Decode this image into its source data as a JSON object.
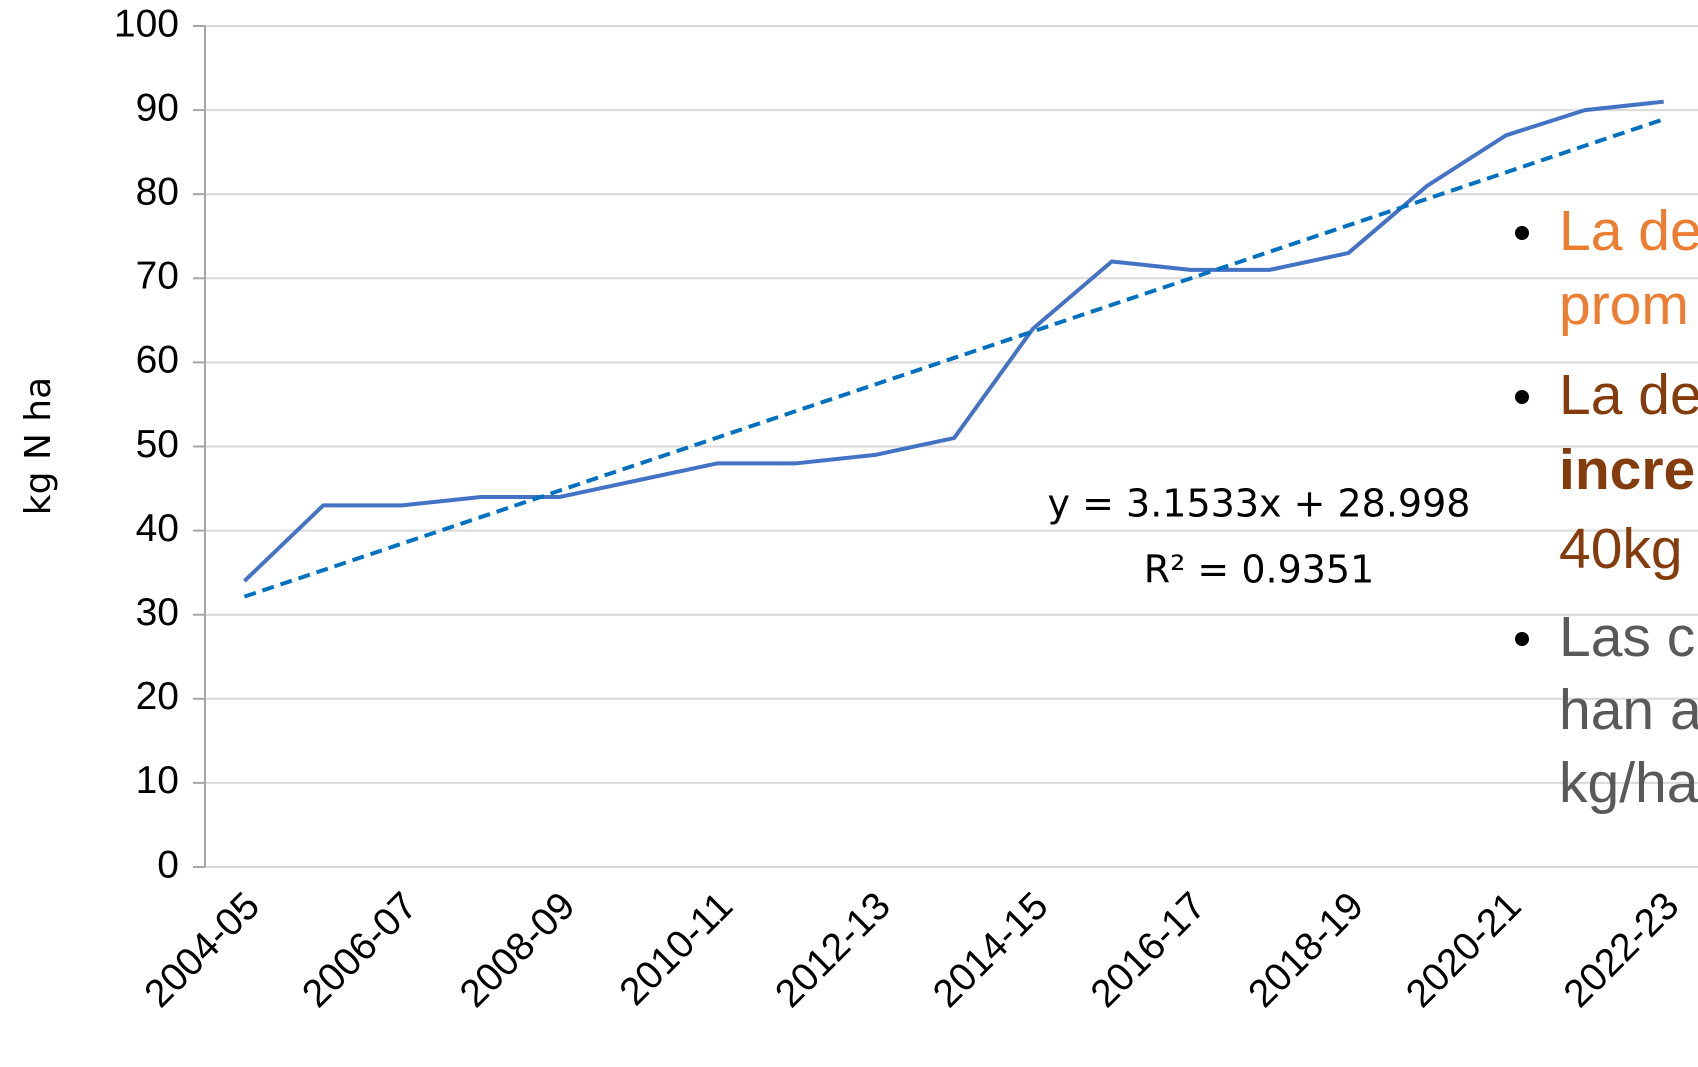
{
  "chart_data": {
    "type": "line",
    "y_label": "kg N ha",
    "categories": [
      "2004-05",
      null,
      "2006-07",
      null,
      "2008-09",
      null,
      "2010-11",
      null,
      "2012-13",
      null,
      "2014-15",
      null,
      "2016-17",
      null,
      "2018-19",
      null,
      "2020-21",
      null,
      "2022-23"
    ],
    "series": [
      {
        "color": "#4472c4",
        "values": [
          34,
          43,
          43,
          44,
          44,
          46,
          48,
          48,
          49,
          51,
          64,
          72,
          71,
          71,
          73,
          81,
          87,
          90,
          91
        ]
      },
      {
        "color": "#0070c0",
        "dashed": true,
        "values": [
          32.15,
          35.3,
          38.46,
          41.61,
          44.77,
          47.92,
          51.07,
          54.23,
          57.38,
          60.53,
          63.68,
          66.84,
          69.99,
          73.15,
          76.3,
          79.45,
          82.6,
          85.76,
          88.91
        ]
      }
    ],
    "annotations": [
      "y = 3.1533x + 28.998",
      "R² = 0.9351"
    ],
    "ylim": [
      0,
      100
    ],
    "yticks": [
      0,
      10,
      20,
      30,
      40,
      50,
      60,
      70,
      80,
      90,
      100
    ],
    "grid": true
  },
  "bullets": [
    {
      "color": "#ed7d31",
      "lines": [
        "La de",
        "prom"
      ]
    },
    {
      "color": "#843c0c",
      "lines": [
        "La de",
        {
          "text": "incre",
          "bold": true
        },
        "40kg"
      ]
    },
    {
      "color": "#595959",
      "lines": [
        "Las c",
        "han a",
        "kg/ha"
      ]
    }
  ]
}
